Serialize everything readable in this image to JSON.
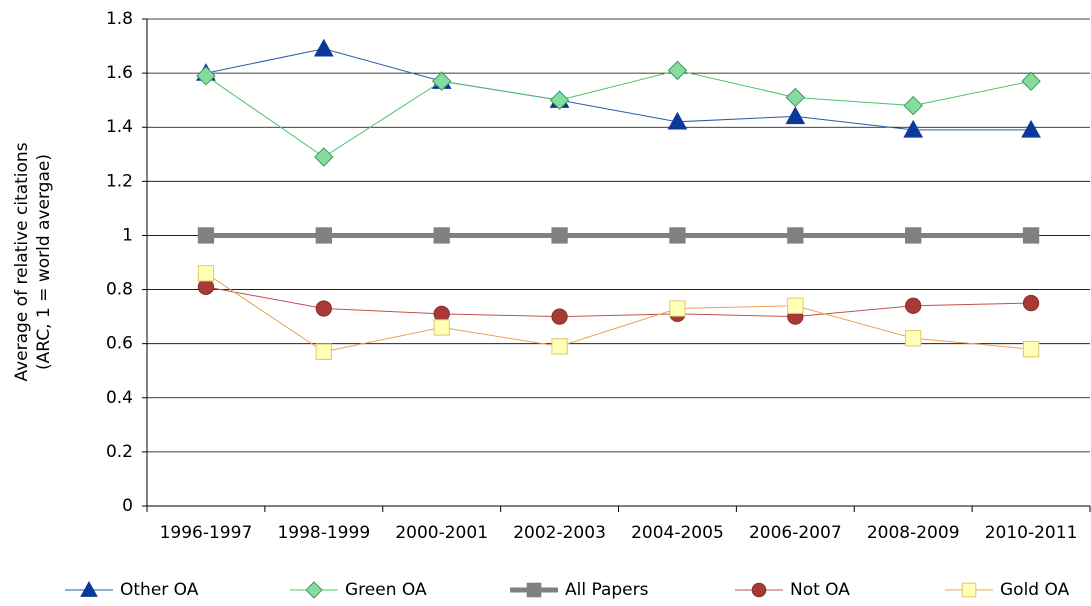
{
  "chart_data": {
    "type": "line",
    "y_label": [
      "Average of relative citations",
      "(ARC, 1 = world avergae)"
    ],
    "categories": [
      "1996-1997",
      "1998-1999",
      "2000-2001",
      "2002-2003",
      "2004-2005",
      "2006-2007",
      "2008-2009",
      "2010-2011"
    ],
    "series": [
      {
        "name": "Other OA",
        "color": "#2b5aa8",
        "marker": "triangle",
        "marker_fill": "#0a3a99",
        "marker_stroke": "#0a3a99",
        "line_width": 1,
        "values": [
          1.6,
          1.69,
          1.57,
          1.5,
          1.42,
          1.44,
          1.39,
          1.39
        ]
      },
      {
        "name": "Green OA",
        "color": "#4cc46a",
        "marker": "diamond",
        "marker_fill": "#86dc9e",
        "marker_stroke": "#3d9a58",
        "line_width": 1,
        "values": [
          1.59,
          1.29,
          1.57,
          1.5,
          1.61,
          1.51,
          1.48,
          1.57
        ]
      },
      {
        "name": "All Papers",
        "color": "#808080",
        "marker": "square",
        "marker_fill": "#808080",
        "marker_stroke": "#808080",
        "line_width": 5,
        "values": [
          1,
          1,
          1,
          1,
          1,
          1,
          1,
          1
        ]
      },
      {
        "name": "Not OA",
        "color": "#c0504d",
        "marker": "circle",
        "marker_fill": "#a53a36",
        "marker_stroke": "#8a2e2b",
        "line_width": 1,
        "values": [
          0.81,
          0.73,
          0.71,
          0.7,
          0.71,
          0.7,
          0.74,
          0.75
        ]
      },
      {
        "name": "Gold OA",
        "color": "#f0a050",
        "marker": "square",
        "marker_fill": "#ffffb8",
        "marker_stroke": "#e3c76a",
        "line_width": 1,
        "values": [
          0.86,
          0.57,
          0.66,
          0.59,
          0.73,
          0.74,
          0.62,
          0.58
        ]
      }
    ],
    "ylim": [
      0,
      1.8
    ],
    "yticks": [
      0,
      0.2,
      0.4,
      0.6,
      0.8,
      1,
      1.2,
      1.4,
      1.6,
      1.8
    ],
    "grid": true,
    "legend": "bottom"
  }
}
